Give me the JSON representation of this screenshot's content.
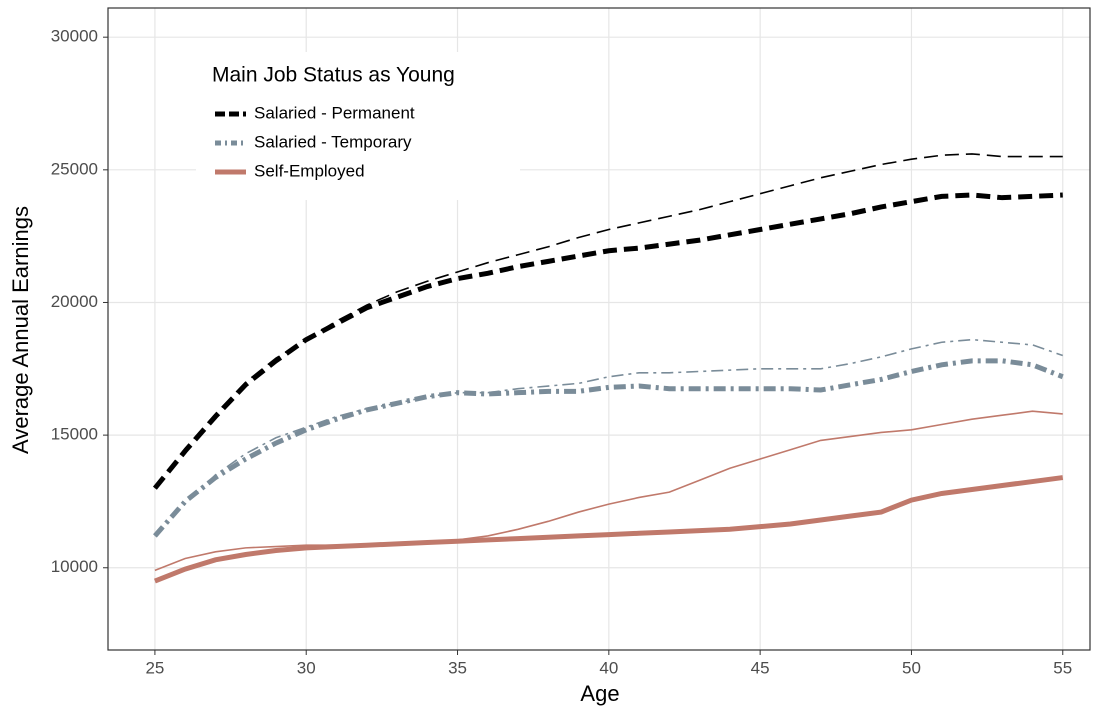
{
  "chart_data": {
    "type": "line",
    "x_label": "Age",
    "y_label": "Average Annual Earnings",
    "legend_title": "Main Job Status as Young",
    "legend": "top-left",
    "grid": true,
    "x": [
      25,
      26,
      27,
      28,
      29,
      30,
      31,
      32,
      33,
      34,
      35,
      36,
      37,
      38,
      39,
      40,
      41,
      42,
      43,
      44,
      45,
      46,
      47,
      48,
      49,
      50,
      51,
      52,
      53,
      54,
      55
    ],
    "xlim": [
      23.45,
      55.9
    ],
    "xticks": [
      25,
      30,
      35,
      40,
      45,
      50,
      55
    ],
    "ylim": [
      6900,
      31100
    ],
    "yticks": [
      10000,
      15000,
      20000,
      25000,
      30000
    ],
    "series": [
      {
        "name": "Salaried - Permanent",
        "color": "#000000",
        "dash": "14,7",
        "values": [
          13000,
          14400,
          15700,
          16900,
          17800,
          18600,
          19200,
          19800,
          20200,
          20600,
          20900,
          21100,
          21350,
          21550,
          21750,
          21950,
          22050,
          22200,
          22350,
          22550,
          22750,
          22950,
          23150,
          23350,
          23600,
          23800,
          24000,
          24050,
          23950,
          24000,
          24050
        ],
        "values_thin": [
          13000,
          14500,
          15800,
          17000,
          17900,
          18600,
          19300,
          19900,
          20400,
          20800,
          21150,
          21500,
          21800,
          22100,
          22450,
          22750,
          23000,
          23250,
          23500,
          23800,
          24100,
          24400,
          24700,
          24950,
          25200,
          25400,
          25550,
          25600,
          25500,
          25500,
          25500
        ]
      },
      {
        "name": "Salaried - Temporary",
        "color": "#7a8c99",
        "dash": "12,5,3,5",
        "values": [
          11200,
          12500,
          13400,
          14100,
          14700,
          15200,
          15600,
          15950,
          16200,
          16450,
          16600,
          16550,
          16600,
          16650,
          16650,
          16800,
          16850,
          16750,
          16750,
          16750,
          16750,
          16750,
          16700,
          16900,
          17100,
          17400,
          17650,
          17800,
          17800,
          17650,
          17200
        ],
        "values_thin": [
          11200,
          12400,
          13500,
          14300,
          14900,
          15300,
          15700,
          16000,
          16200,
          16450,
          16600,
          16600,
          16750,
          16850,
          16950,
          17200,
          17350,
          17350,
          17400,
          17450,
          17500,
          17500,
          17500,
          17700,
          17950,
          18250,
          18500,
          18600,
          18500,
          18400,
          18000
        ]
      },
      {
        "name": "Self-Employed",
        "color": "#c0796b",
        "dash": "none",
        "values": [
          9500,
          9950,
          10300,
          10500,
          10650,
          10750,
          10800,
          10850,
          10900,
          10950,
          11000,
          11050,
          11100,
          11150,
          11200,
          11250,
          11300,
          11350,
          11400,
          11450,
          11550,
          11650,
          11800,
          11950,
          12100,
          12550,
          12800,
          12950,
          13100,
          13250,
          13400
        ],
        "values_thin": [
          9900,
          10350,
          10600,
          10750,
          10800,
          10850,
          10850,
          10850,
          10900,
          10950,
          11050,
          11200,
          11450,
          11750,
          12100,
          12400,
          12650,
          12850,
          13300,
          13750,
          14100,
          14450,
          14800,
          14950,
          15100,
          15200,
          15400,
          15600,
          15750,
          15900,
          15800
        ]
      }
    ]
  }
}
